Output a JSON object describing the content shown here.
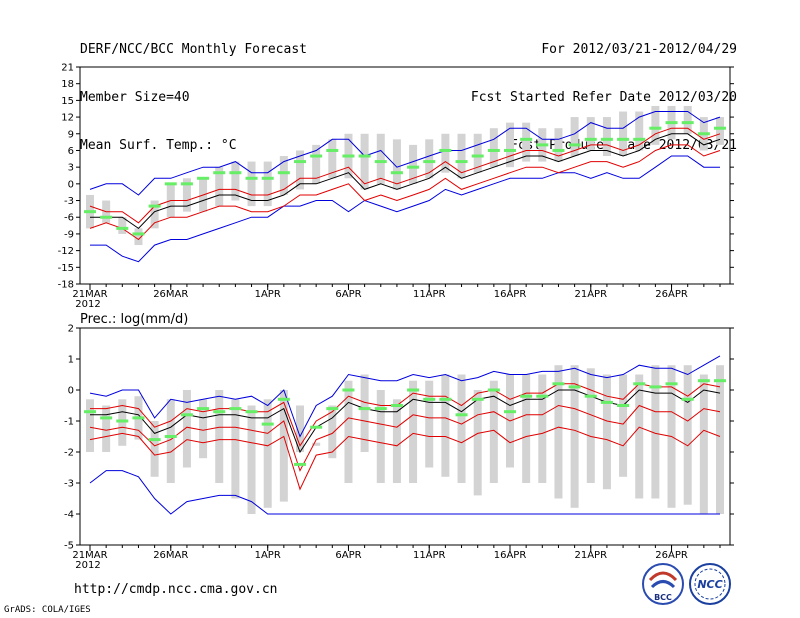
{
  "header": {
    "left": [
      "DERF/NCC/BCC Monthly Forecast",
      "Member Size=40",
      "Mean Surf. Temp.: °C"
    ],
    "right": [
      "For 2012/03/21-2012/04/29",
      "Fcst Started Refer Date 2012/03/20",
      "Fcst Produced Date 2012/03/21"
    ]
  },
  "footer": {
    "url": "http://cmdp.ncc.cma.gov.cn",
    "grads": "GrADS: COLA/IGES",
    "logo1_text": "BCC",
    "logo2_text": "NCC"
  },
  "colors": {
    "box": "#d3d3d3",
    "mean": "#66ee66",
    "median": "#000000",
    "inner": "#e00000",
    "outer": "#0000dd"
  },
  "chart_data": [
    {
      "type": "box-line",
      "title": "Mean Surf. Temp.: °C",
      "ylim": [
        -18,
        21
      ],
      "yticks": [
        -18,
        -15,
        -12,
        -9,
        -6,
        -3,
        0,
        3,
        6,
        9,
        12,
        15,
        18,
        21
      ],
      "xlim": [
        0,
        39
      ],
      "xticks": [
        {
          "x": 0,
          "label": "21MAR",
          "sub": "2012"
        },
        {
          "x": 5,
          "label": "26MAR"
        },
        {
          "x": 11,
          "label": "1APR"
        },
        {
          "x": 16,
          "label": "6APR"
        },
        {
          "x": 21,
          "label": "11APR"
        },
        {
          "x": 26,
          "label": "16APR"
        },
        {
          "x": 31,
          "label": "21APR"
        },
        {
          "x": 36,
          "label": "26APR"
        }
      ],
      "box_low": [
        -8,
        -7,
        -9,
        -11,
        -8,
        -6,
        -5,
        -5,
        -4,
        -3,
        -4,
        -4,
        -2,
        -1,
        0,
        1,
        1,
        -1,
        0,
        -1,
        0,
        1,
        2,
        1,
        2,
        3,
        3,
        4,
        4,
        4,
        5,
        6,
        5,
        5,
        6,
        7,
        8,
        9,
        6,
        7
      ],
      "box_high": [
        -2,
        -3,
        -6,
        -8,
        -3,
        0,
        1,
        1,
        3,
        4,
        4,
        4,
        5,
        6,
        7,
        8,
        9,
        9,
        9,
        8,
        7,
        8,
        9,
        9,
        9,
        10,
        11,
        11,
        10,
        10,
        12,
        12,
        12,
        13,
        13,
        14,
        14,
        14,
        12,
        12
      ],
      "mean": [
        -5,
        -6,
        -8,
        -9,
        -4,
        0,
        0,
        1,
        2,
        2,
        1,
        1,
        2,
        4,
        5,
        6,
        5,
        5,
        4,
        2,
        3,
        4,
        6,
        4,
        5,
        6,
        6,
        8,
        7,
        6,
        7,
        8,
        8,
        8,
        8,
        10,
        11,
        11,
        9,
        10
      ],
      "median": [
        -6,
        -6,
        -6,
        -8,
        -5,
        -4,
        -4,
        -3,
        -2,
        -2,
        -3,
        -3,
        -2,
        0,
        0,
        1,
        2,
        -1,
        0,
        -1,
        0,
        1,
        3,
        1,
        2,
        3,
        4,
        5,
        5,
        4,
        5,
        6,
        6,
        5,
        6,
        8,
        9,
        9,
        7,
        8
      ],
      "inner_high": [
        -4,
        -5,
        -5,
        -7,
        -4,
        -3,
        -3,
        -2,
        -1,
        -1,
        -2,
        -2,
        -1,
        1,
        1,
        2,
        3,
        0,
        1,
        0,
        1,
        2,
        4,
        2,
        3,
        4,
        5,
        6,
        6,
        5,
        6,
        7,
        7,
        6,
        7,
        9,
        10,
        10,
        8,
        9
      ],
      "inner_low": [
        -8,
        -7,
        -8,
        -10,
        -7,
        -6,
        -6,
        -5,
        -4,
        -4,
        -5,
        -5,
        -4,
        -2,
        -2,
        -1,
        0,
        -3,
        -2,
        -3,
        -2,
        -1,
        1,
        -1,
        0,
        1,
        2,
        3,
        3,
        2,
        3,
        4,
        4,
        3,
        4,
        6,
        7,
        7,
        5,
        6
      ],
      "outer_high": [
        -1,
        0,
        0,
        -2,
        1,
        1,
        2,
        3,
        3,
        4,
        2,
        2,
        4,
        5,
        6,
        8,
        8,
        5,
        6,
        3,
        4,
        5,
        6,
        6,
        7,
        8,
        10,
        10,
        8,
        8,
        9,
        11,
        10,
        10,
        12,
        13,
        13,
        13,
        11,
        12
      ],
      "outer_low": [
        -11,
        -11,
        -13,
        -14,
        -11,
        -10,
        -10,
        -9,
        -8,
        -7,
        -6,
        -6,
        -4,
        -4,
        -3,
        -3,
        -5,
        -3,
        -4,
        -5,
        -4,
        -3,
        -1,
        -2,
        -1,
        0,
        1,
        1,
        1,
        2,
        2,
        1,
        2,
        1,
        1,
        3,
        5,
        5,
        3,
        3
      ]
    },
    {
      "type": "box-line",
      "title": "Prec.: log(mm/d)",
      "ylim": [
        -5,
        2
      ],
      "yticks": [
        -5,
        -4,
        -3,
        -2,
        -1,
        0,
        1,
        2
      ],
      "xlim": [
        0,
        39
      ],
      "xticks": [
        {
          "x": 0,
          "label": "21MAR",
          "sub": "2012"
        },
        {
          "x": 5,
          "label": "26MAR"
        },
        {
          "x": 11,
          "label": "1APR"
        },
        {
          "x": 16,
          "label": "6APR"
        },
        {
          "x": 21,
          "label": "11APR"
        },
        {
          "x": 26,
          "label": "16APR"
        },
        {
          "x": 31,
          "label": "21APR"
        },
        {
          "x": 36,
          "label": "26APR"
        }
      ],
      "box_low": [
        -2,
        -2,
        -1.8,
        -1.6,
        -2.8,
        -3,
        -2.5,
        -2.2,
        -3,
        -3.5,
        -4,
        -3.8,
        -3.6,
        -2,
        -1.8,
        -2.2,
        -3,
        -2,
        -3,
        -3,
        -3,
        -2.5,
        -2.8,
        -3,
        -3.4,
        -3,
        -2.5,
        -3,
        -3,
        -3.5,
        -3.8,
        -3,
        -3.2,
        -2.8,
        -3.5,
        -3.5,
        -3.8,
        -3.7,
        -4,
        -4
      ],
      "box_high": [
        -0.3,
        -0.5,
        -0.3,
        -0.2,
        -1,
        -0.3,
        0,
        -0.3,
        0,
        -0.3,
        -0.5,
        -0.3,
        0,
        -0.5,
        -1.7,
        -0.5,
        0.3,
        0.5,
        0,
        -0.3,
        0.3,
        0.3,
        0.5,
        0.5,
        0,
        0.3,
        0.5,
        0.5,
        0.5,
        0.8,
        0.8,
        0.7,
        0.5,
        0.5,
        0.5,
        0.8,
        0.8,
        0.8,
        0.5,
        0.8
      ],
      "mean": [
        -0.7,
        -0.9,
        -1,
        -0.9,
        -1.6,
        -1.5,
        -0.8,
        -0.6,
        -0.7,
        -0.6,
        -0.7,
        -1.1,
        -0.3,
        -2.4,
        -1.2,
        -0.6,
        0,
        -0.6,
        -0.6,
        -0.5,
        0,
        -0.3,
        -0.3,
        -0.8,
        -0.3,
        0,
        -0.7,
        -0.2,
        -0.2,
        0.2,
        0.1,
        -0.2,
        -0.4,
        -0.5,
        0.2,
        0.1,
        0.2,
        -0.3,
        0.3,
        0.3
      ],
      "median": [
        -0.8,
        -0.8,
        -0.7,
        -0.8,
        -1.4,
        -1.2,
        -0.8,
        -0.9,
        -0.8,
        -0.8,
        -0.9,
        -0.9,
        -0.6,
        -2,
        -1.2,
        -0.9,
        -0.4,
        -0.6,
        -0.7,
        -0.7,
        -0.3,
        -0.4,
        -0.4,
        -0.7,
        -0.3,
        -0.2,
        -0.5,
        -0.3,
        -0.3,
        0,
        0,
        -0.2,
        -0.4,
        -0.5,
        0,
        -0.1,
        -0.1,
        -0.4,
        0,
        -0.1
      ],
      "inner_high": [
        -0.6,
        -0.6,
        -0.5,
        -0.6,
        -1.2,
        -1,
        -0.6,
        -0.7,
        -0.6,
        -0.6,
        -0.7,
        -0.7,
        -0.4,
        -1.8,
        -1,
        -0.7,
        -0.2,
        -0.4,
        -0.5,
        -0.5,
        -0.1,
        -0.2,
        -0.2,
        -0.5,
        -0.1,
        0,
        -0.3,
        -0.1,
        -0.1,
        0.2,
        0.2,
        0,
        -0.2,
        -0.3,
        0.2,
        0.1,
        0.1,
        -0.2,
        0.2,
        0.1
      ],
      "inner_low": [
        -1.2,
        -1.3,
        -1.2,
        -1.3,
        -1.8,
        -1.6,
        -1.2,
        -1.3,
        -1.2,
        -1.2,
        -1.3,
        -1.4,
        -1,
        -2.6,
        -1.6,
        -1.4,
        -0.9,
        -1,
        -1.1,
        -1.2,
        -0.8,
        -0.9,
        -0.9,
        -1.1,
        -0.8,
        -0.7,
        -1,
        -0.8,
        -0.8,
        -0.5,
        -0.6,
        -0.8,
        -1,
        -1.1,
        -0.5,
        -0.7,
        -0.7,
        -1,
        -0.6,
        -0.7
      ],
      "lower_high": [
        -1.6,
        -1.5,
        -1.4,
        -1.5,
        -2.1,
        -2,
        -1.6,
        -1.7,
        -1.6,
        -1.6,
        -1.7,
        -1.8,
        -1.5,
        -3.2,
        -2.1,
        -2,
        -1.5,
        -1.6,
        -1.7,
        -1.8,
        -1.4,
        -1.5,
        -1.5,
        -1.7,
        -1.4,
        -1.3,
        -1.7,
        -1.5,
        -1.4,
        -1.2,
        -1.3,
        -1.5,
        -1.6,
        -1.8,
        -1.2,
        -1.4,
        -1.5,
        -1.8,
        -1.3,
        -1.5
      ],
      "outer_high": [
        -0.1,
        -0.2,
        0,
        0,
        -0.9,
        -0.3,
        -0.4,
        -0.3,
        -0.2,
        -0.3,
        -0.2,
        -0.5,
        0,
        -1.5,
        -0.5,
        -0.2,
        0.5,
        0.4,
        0.3,
        0.3,
        0.5,
        0.4,
        0.5,
        0.3,
        0.4,
        0.6,
        0.5,
        0.5,
        0.6,
        0.6,
        0.7,
        0.5,
        0.4,
        0.5,
        0.8,
        0.7,
        0.7,
        0.5,
        0.8,
        1.1
      ],
      "outer_low": [
        -3,
        -2.6,
        -2.6,
        -2.8,
        -3.5,
        -4,
        -3.6,
        -3.5,
        -3.4,
        -3.4,
        -3.6,
        -4,
        -4,
        -4,
        -4,
        -4,
        -4,
        -4,
        -4,
        -4,
        -4,
        -4,
        -4,
        -4,
        -4,
        -4,
        -4,
        -4,
        -4,
        -4,
        -4,
        -4,
        -4,
        -4,
        -4,
        -4,
        -4,
        -4,
        -4,
        -4
      ]
    }
  ]
}
